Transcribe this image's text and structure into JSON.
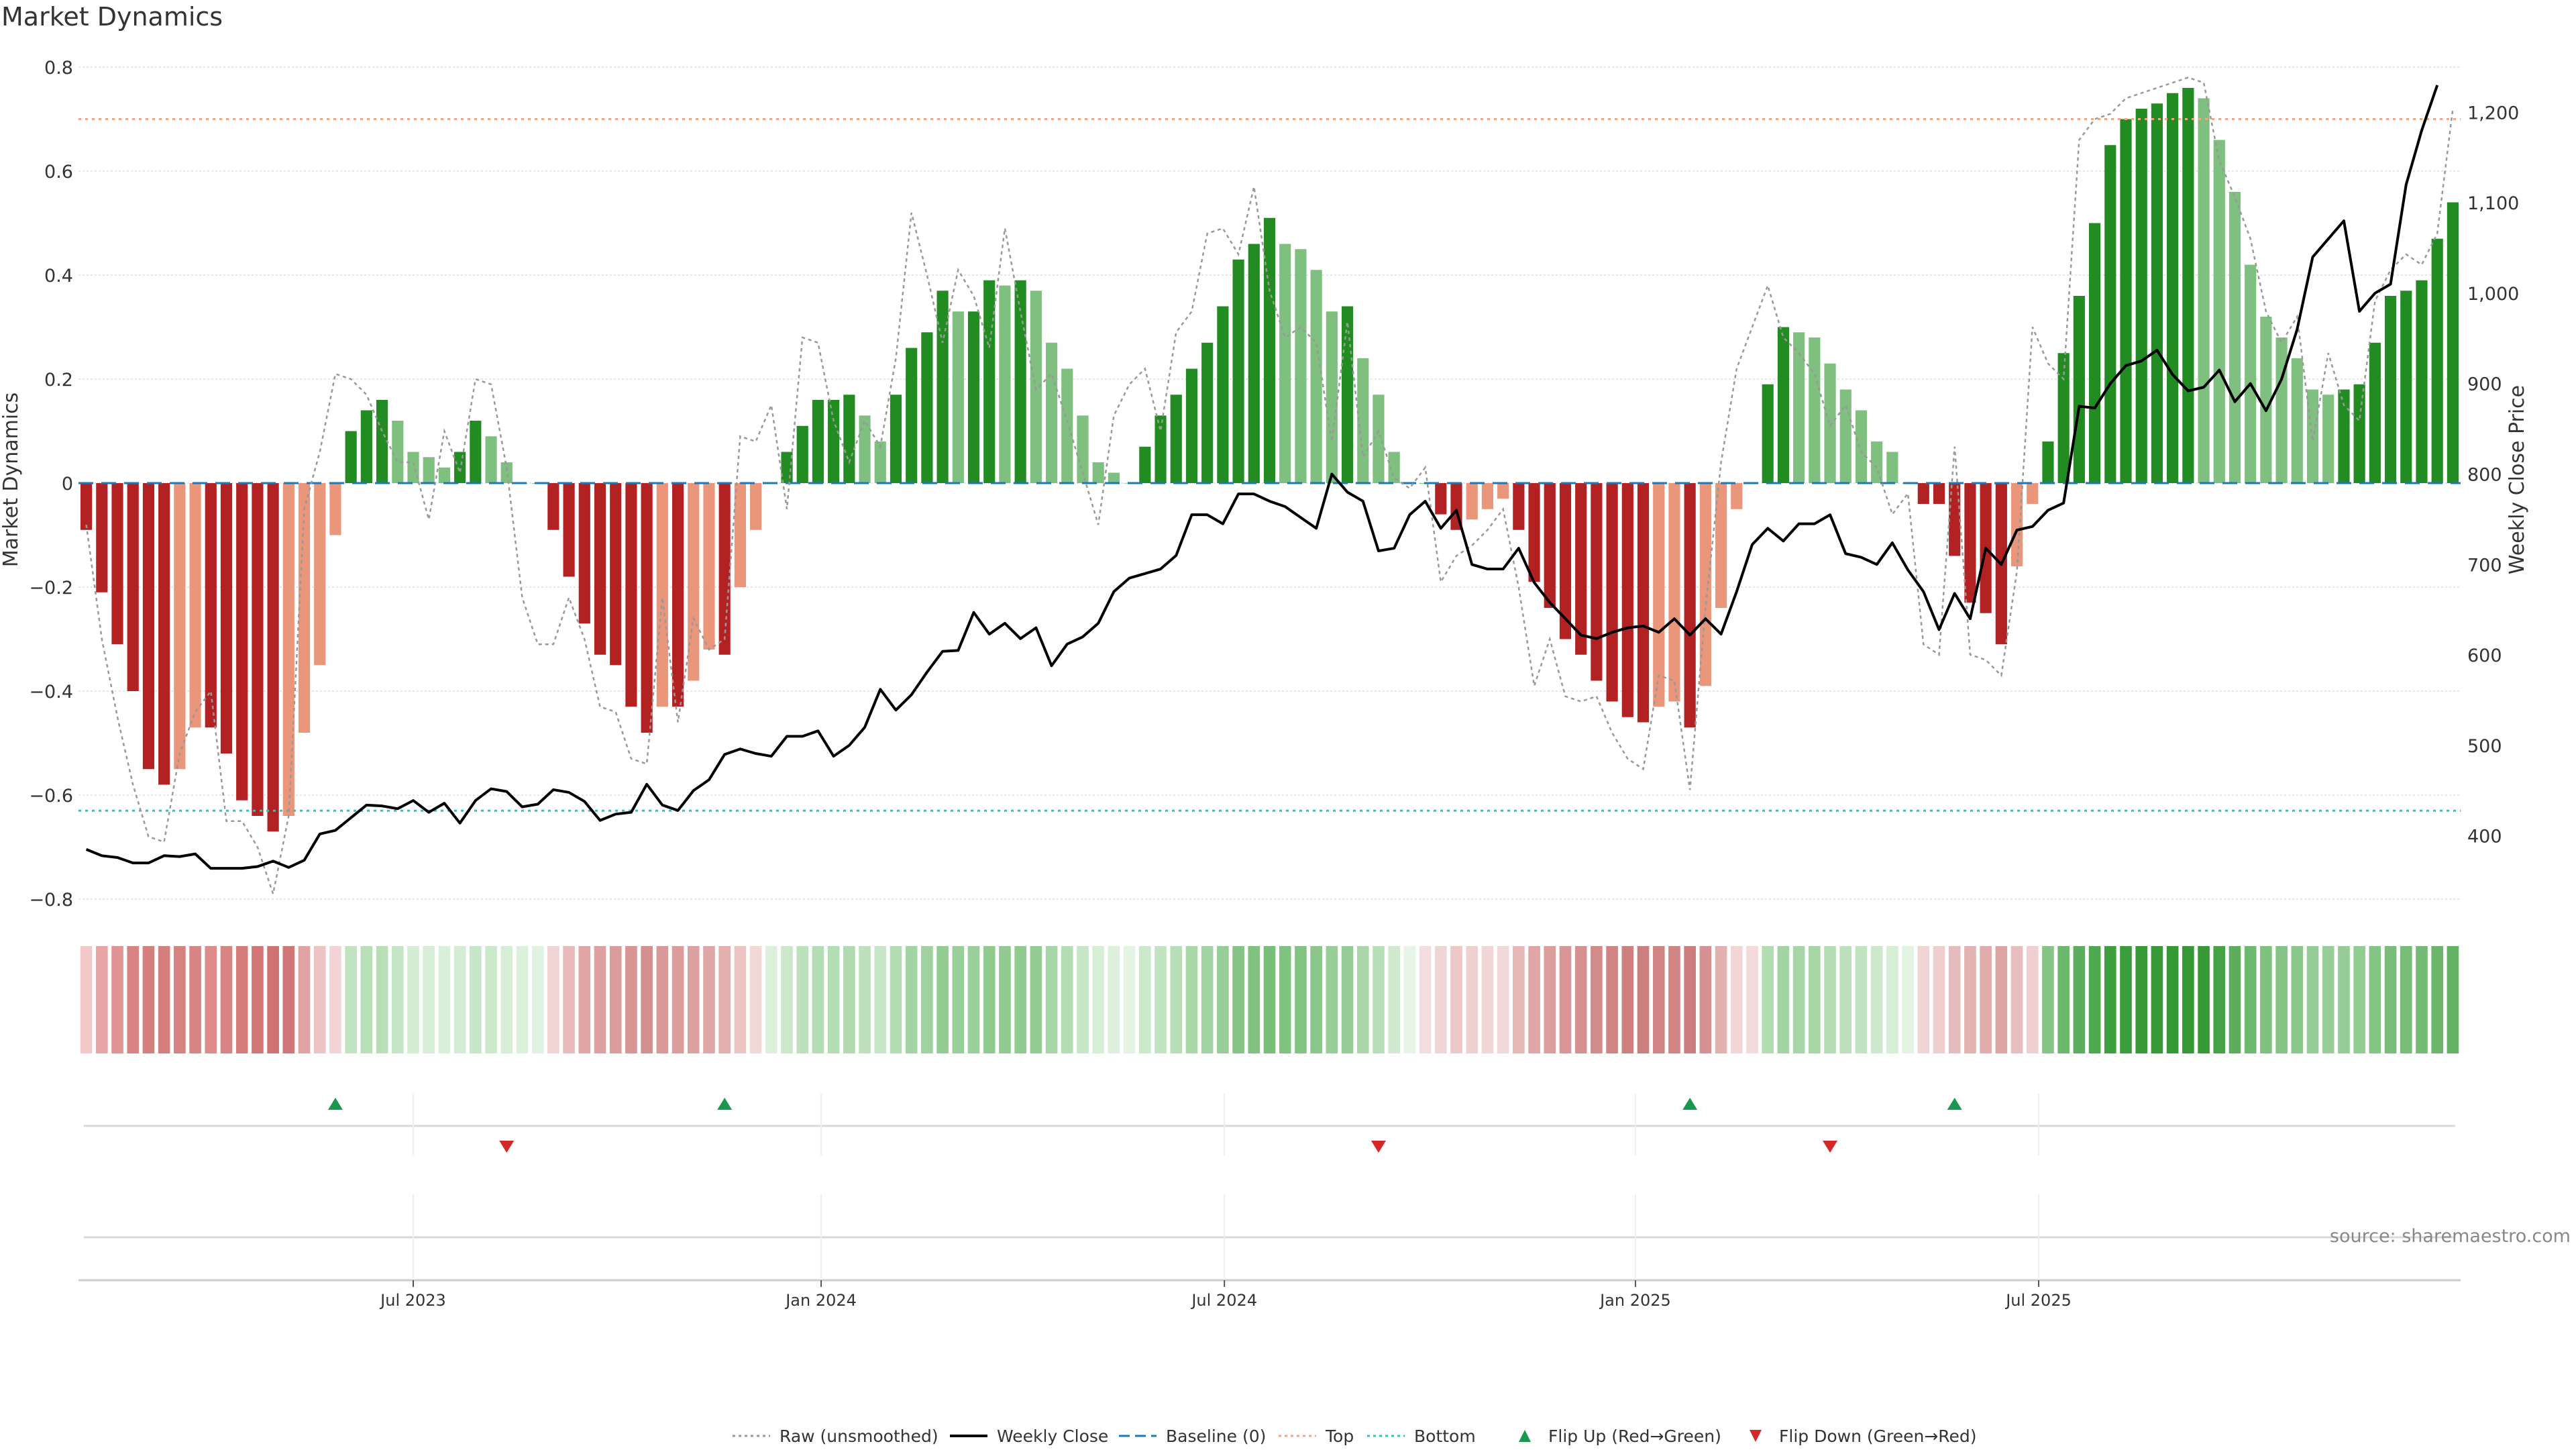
{
  "chart_data": {
    "type": "bar",
    "title": "Market Dynamics",
    "ylabel_left": "Market Dynamics",
    "ylabel_right": "Weekly Close Price",
    "source": "source: sharemaestro.com",
    "ylim_left": [
      -0.8,
      0.8
    ],
    "yticks_left": [
      "0.8",
      "0.6",
      "0.4",
      "0.2",
      "0",
      "−0.2",
      "−0.4",
      "−0.6",
      "−0.8"
    ],
    "ylim_right": [
      330,
      1250
    ],
    "yticks_right": [
      "1,200",
      "1,100",
      "1,000",
      "900",
      "800",
      "700",
      "600",
      "500",
      "400"
    ],
    "yticks_right_values": [
      1200,
      1100,
      1000,
      900,
      800,
      700,
      600,
      500,
      400
    ],
    "x_ticks": [
      {
        "label": "Jul 2023",
        "week": 21.5
      },
      {
        "label": "Jan 2024",
        "week": 47.7
      },
      {
        "label": "Jul 2024",
        "week": 73.6
      },
      {
        "label": "Jan 2025",
        "week": 100.0
      },
      {
        "label": "Jul 2025",
        "week": 125.9
      }
    ],
    "top_threshold": 0.7,
    "bottom_threshold": -0.63,
    "baseline": 0,
    "colors": {
      "strong_green": "#228b22",
      "light_green": "#7fbf7f",
      "strong_red": "#b22222",
      "light_red": "#e9967a",
      "price": "#000000",
      "raw": "#999999",
      "top": "#f4a582",
      "bottom": "#2ec4c4",
      "baseline": "#1f77b4",
      "flip_up": "#1a9850",
      "flip_down": "#d62728"
    },
    "bar_values": [
      -0.09,
      -0.21,
      -0.31,
      -0.4,
      -0.55,
      -0.58,
      -0.55,
      -0.47,
      -0.47,
      -0.52,
      -0.61,
      -0.64,
      -0.67,
      -0.64,
      -0.48,
      -0.35,
      -0.1,
      0.1,
      0.14,
      0.16,
      0.12,
      0.06,
      0.05,
      0.03,
      0.06,
      0.12,
      0.09,
      0.04,
      0.0,
      0.0,
      -0.09,
      -0.18,
      -0.27,
      -0.33,
      -0.35,
      -0.43,
      -0.48,
      -0.43,
      -0.43,
      -0.38,
      -0.32,
      -0.33,
      -0.2,
      -0.09,
      0.0,
      0.06,
      0.11,
      0.16,
      0.16,
      0.17,
      0.13,
      0.08,
      0.17,
      0.26,
      0.29,
      0.37,
      0.33,
      0.33,
      0.39,
      0.38,
      0.39,
      0.37,
      0.27,
      0.22,
      0.13,
      0.04,
      0.02,
      0.0,
      0.07,
      0.13,
      0.17,
      0.22,
      0.27,
      0.34,
      0.43,
      0.46,
      0.51,
      0.46,
      0.45,
      0.41,
      0.33,
      0.34,
      0.24,
      0.17,
      0.06,
      0.0,
      0.0,
      -0.06,
      -0.09,
      -0.07,
      -0.05,
      -0.03,
      -0.09,
      -0.19,
      -0.24,
      -0.3,
      -0.33,
      -0.38,
      -0.42,
      -0.45,
      -0.46,
      -0.43,
      -0.42,
      -0.47,
      -0.39,
      -0.24,
      -0.05,
      0.0,
      0.19,
      0.3,
      0.29,
      0.28,
      0.23,
      0.18,
      0.14,
      0.08,
      0.06,
      0.0,
      -0.04,
      -0.04,
      -0.14,
      -0.23,
      -0.25,
      -0.31,
      -0.16,
      -0.04,
      0.08,
      0.25,
      0.36,
      0.5,
      0.65,
      0.7,
      0.72,
      0.73,
      0.75,
      0.76,
      0.74,
      0.66,
      0.56,
      0.42,
      0.32,
      0.28,
      0.24,
      0.18,
      0.17,
      0.18,
      0.19,
      0.27,
      0.36,
      0.37,
      0.39,
      0.47,
      0.54
    ],
    "raw_values": [
      -0.08,
      -0.3,
      -0.45,
      -0.58,
      -0.68,
      -0.69,
      -0.52,
      -0.44,
      -0.4,
      -0.65,
      -0.65,
      -0.7,
      -0.79,
      -0.64,
      -0.05,
      0.06,
      0.21,
      0.2,
      0.17,
      0.1,
      0.04,
      0.04,
      -0.07,
      0.1,
      0.02,
      0.2,
      0.19,
      0.03,
      -0.22,
      -0.31,
      -0.31,
      -0.22,
      -0.3,
      -0.43,
      -0.44,
      -0.53,
      -0.54,
      -0.22,
      -0.46,
      -0.26,
      -0.32,
      -0.3,
      0.09,
      0.08,
      0.15,
      -0.05,
      0.28,
      0.27,
      0.12,
      0.04,
      0.12,
      0.07,
      0.24,
      0.52,
      0.4,
      0.27,
      0.41,
      0.36,
      0.26,
      0.49,
      0.33,
      0.18,
      0.21,
      0.12,
      0.02,
      -0.08,
      0.13,
      0.19,
      0.22,
      0.1,
      0.29,
      0.33,
      0.48,
      0.49,
      0.44,
      0.57,
      0.37,
      0.28,
      0.3,
      0.27,
      0.08,
      0.31,
      0.05,
      0.1,
      0.01,
      -0.01,
      0.03,
      -0.19,
      -0.14,
      -0.12,
      -0.09,
      -0.05,
      -0.2,
      -0.39,
      -0.3,
      -0.41,
      -0.42,
      -0.41,
      -0.48,
      -0.53,
      -0.55,
      -0.37,
      -0.38,
      -0.59,
      -0.24,
      0.04,
      0.22,
      0.3,
      0.38,
      0.28,
      0.25,
      0.21,
      0.11,
      0.15,
      0.06,
      0.03,
      -0.06,
      -0.02,
      -0.31,
      -0.33,
      0.07,
      -0.33,
      -0.34,
      -0.37,
      -0.17,
      0.3,
      0.23,
      0.2,
      0.66,
      0.7,
      0.71,
      0.74,
      0.75,
      0.76,
      0.77,
      0.78,
      0.77,
      0.62,
      0.55,
      0.47,
      0.33,
      0.27,
      0.32,
      0.08,
      0.25,
      0.15,
      0.12,
      0.35,
      0.41,
      0.44,
      0.42,
      0.48,
      0.72
    ],
    "price_values": [
      385,
      378,
      376,
      370,
      370,
      378,
      377,
      380,
      364,
      364,
      364,
      366,
      372,
      365,
      373,
      402,
      406,
      420,
      434,
      433,
      430,
      439,
      426,
      436,
      414,
      439,
      452,
      449,
      432,
      435,
      451,
      448,
      438,
      417,
      424,
      426,
      457,
      434,
      428,
      450,
      462,
      490,
      496,
      491,
      488,
      510,
      510,
      516,
      488,
      500,
      520,
      562,
      539,
      556,
      581,
      604,
      605,
      647,
      623,
      635,
      618,
      630,
      588,
      612,
      620,
      635,
      670,
      685,
      690,
      695,
      710,
      755,
      755,
      745,
      778,
      778,
      770,
      764,
      752,
      740,
      800,
      780,
      770,
      715,
      718,
      755,
      770,
      740,
      760,
      700,
      695,
      695,
      718,
      680,
      658,
      640,
      622,
      618,
      625,
      630,
      632,
      625,
      640,
      622,
      640,
      623,
      670,
      722,
      740,
      726,
      745,
      745,
      755,
      712,
      708,
      700,
      724,
      694,
      670,
      628,
      668,
      640,
      718,
      700,
      738,
      742,
      760,
      768,
      875,
      873,
      900,
      920,
      925,
      937,
      910,
      892,
      896,
      915,
      880,
      900,
      870,
      905,
      960,
      1040,
      1060,
      1080,
      980,
      1000,
      1010,
      1120,
      1180,
      1230
    ],
    "heat_strip": [
      "#f2c9c9",
      "#e8a5a5",
      "#e09494",
      "#d98484",
      "#d67f7f",
      "#d67f7f",
      "#d88181",
      "#d98585",
      "#dd8b8b",
      "#d98484",
      "#d57c7c",
      "#d27676",
      "#cf7272",
      "#d27777",
      "#e0a3a3",
      "#edc4c4",
      "#f3d3d3",
      "#c2e3c2",
      "#b9dfb9",
      "#b9dfb9",
      "#c5e6c5",
      "#d3ecd3",
      "#d6eed6",
      "#d9efd9",
      "#d3ecd3",
      "#c7e6c7",
      "#cbe8cb",
      "#d6eed6",
      "#dcf0dc",
      "#e0f2e0",
      "#f0d4d4",
      "#e8baba",
      "#e2a5a5",
      "#dea0a0",
      "#dc9c9c",
      "#d99595",
      "#d68f8f",
      "#da9898",
      "#dc9c9c",
      "#dea1a1",
      "#e1a7a7",
      "#e4afaf",
      "#ebc3c3",
      "#f3d8d8",
      "#dcf0dc",
      "#cbe8cb",
      "#bde1bd",
      "#b3ddb3",
      "#b3ddb3",
      "#b0dbb0",
      "#bce0bc",
      "#c7e6c7",
      "#b2dcb2",
      "#a3d4a3",
      "#9fd29f",
      "#93cc93",
      "#99cf99",
      "#99cf99",
      "#8fca8f",
      "#92cb92",
      "#8fca8f",
      "#93cc93",
      "#a6d6a6",
      "#b3ddb3",
      "#c7e6c7",
      "#d6eed6",
      "#dcf0dc",
      "#e3f4e3",
      "#cde9cd",
      "#c1e3c1",
      "#b7dfb7",
      "#a9d8a9",
      "#a3d4a3",
      "#97ce97",
      "#85c485",
      "#80c280",
      "#78bd78",
      "#80c280",
      "#82c382",
      "#8ac78a",
      "#97ce97",
      "#96cd96",
      "#aad8aa",
      "#b7dfb7",
      "#d0ead0",
      "#e6f5e6",
      "#f2dede",
      "#efd4d4",
      "#ecc8c8",
      "#efd0d0",
      "#f1d6d6",
      "#f2d9d9",
      "#e6b8b8",
      "#e0a6a6",
      "#dc9d9d",
      "#d99696",
      "#d69090",
      "#d38a8a",
      "#d08484",
      "#ce8080",
      "#cd7f7f",
      "#d08484",
      "#d08484",
      "#cc7d7d",
      "#d69292",
      "#e3b0b0",
      "#f2d6d6",
      "#f4dada",
      "#b2dcb2",
      "#a3d4a3",
      "#a6d6a6",
      "#a6d6a6",
      "#b3ddb3",
      "#bce0bc",
      "#c2e3c2",
      "#cde9cd",
      "#d6eed6",
      "#e3f4e3",
      "#f1d4d4",
      "#eecdcd",
      "#e6bbbb",
      "#e3b2b2",
      "#e1acac",
      "#dea5a5",
      "#e8bdbd",
      "#f0d0d0",
      "#86c586",
      "#6cb86c",
      "#5cae5c",
      "#4ea84e",
      "#3e9f3e",
      "#3a9c3a",
      "#389b38",
      "#379a37",
      "#359935",
      "#349834",
      "#369936",
      "#45a345",
      "#5cae5c",
      "#6fb96f",
      "#7fc17f",
      "#85c485",
      "#8ac78a",
      "#96cd96",
      "#97ce97",
      "#96cd96",
      "#93cc93",
      "#84c484",
      "#78bd78",
      "#77bc77",
      "#75bb75",
      "#6bb66b",
      "#64b364"
    ],
    "flips": [
      {
        "type": "up",
        "week": 16
      },
      {
        "type": "down",
        "week": 27
      },
      {
        "type": "up",
        "week": 41
      },
      {
        "type": "down",
        "week": 83
      },
      {
        "type": "up",
        "week": 103
      },
      {
        "type": "down",
        "week": 112
      },
      {
        "type": "up",
        "week": 120
      }
    ],
    "legend": [
      {
        "label": "Raw (unsmoothed)",
        "kind": "dotted",
        "color": "#999999"
      },
      {
        "label": "Weekly Close",
        "kind": "solid",
        "color": "#000000"
      },
      {
        "label": "Baseline (0)",
        "kind": "dashed",
        "color": "#1f77b4"
      },
      {
        "label": "Top",
        "kind": "dotted",
        "color": "#f4a582"
      },
      {
        "label": "Bottom",
        "kind": "dotted",
        "color": "#2ec4c4"
      },
      {
        "label": "Flip Up (Red→Green)",
        "kind": "up",
        "color": "#1a9850"
      },
      {
        "label": "Flip Down (Green→Red)",
        "kind": "down",
        "color": "#d62728"
      }
    ]
  }
}
